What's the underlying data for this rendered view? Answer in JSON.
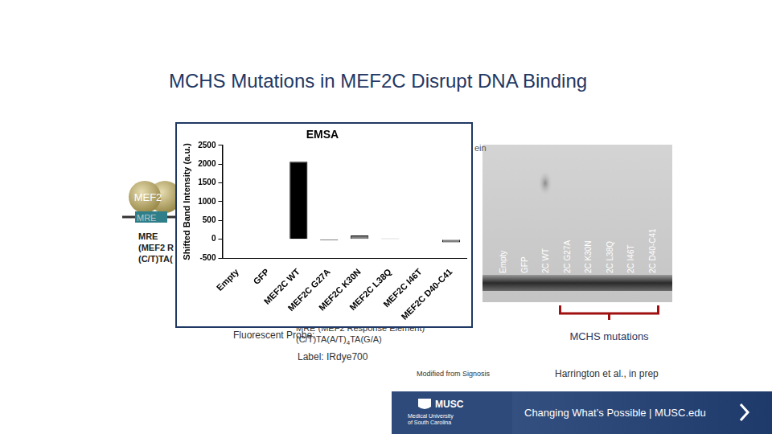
{
  "chart_data": {
    "type": "bar",
    "title": "EMSA",
    "y_label": "Shifted Band Intensity (a.u.)",
    "categories": [
      "Empty",
      "GFP",
      "MEF2C WT",
      "MEF2C G27A",
      "MEF2C K30N",
      "MEF2C L38Q",
      "MEF2C I46T",
      "MEF2C D40-C41"
    ],
    "values": [
      0,
      10,
      2060,
      -30,
      100,
      20,
      10,
      -80
    ],
    "colors": [
      "#000000",
      "#000000",
      "#000000",
      "#000000",
      "#808080",
      "#000000",
      "#000000",
      "#808080"
    ],
    "ylim": [
      -500,
      2500
    ],
    "yticks": [
      -500,
      0,
      500,
      1000,
      1500,
      2000,
      2500
    ],
    "grid": false
  },
  "slide": {
    "title": "MCHS Mutations in MEF2C Disrupt DNA Binding",
    "diagram": {
      "protein": "MEF2",
      "site": "MRE",
      "site_title": "MRE",
      "site_lines": [
        "(MEF2 R",
        "(C/T)TA("
      ],
      "fragment": "ein"
    },
    "probe": {
      "label": "Fluorescent Probe:",
      "name": "MRE (MEF2 Response Element)",
      "sequence": [
        "(C/T)TA(A/T)",
        "4",
        "TA(G/A)"
      ],
      "dye": "Label: IRdye700"
    },
    "gel": {
      "lanes": [
        "Empty",
        "GFP",
        "2C WT"
      ],
      "mutation_lanes": {
        "label": "MCHS mutations",
        "lanes": [
          "2C G27A",
          "2C K30N",
          "2C L38Q",
          "2C I46T",
          "2C D40-C41"
        ]
      }
    },
    "credits": [
      "Modified from Signosis",
      "Harrington et al., in prep"
    ],
    "footer": {
      "logo": "MUSC",
      "logo_subtitle": [
        "Medical University",
        "of South Carolina"
      ],
      "tagline": "Changing What’s Possible | MUSC.edu"
    }
  }
}
